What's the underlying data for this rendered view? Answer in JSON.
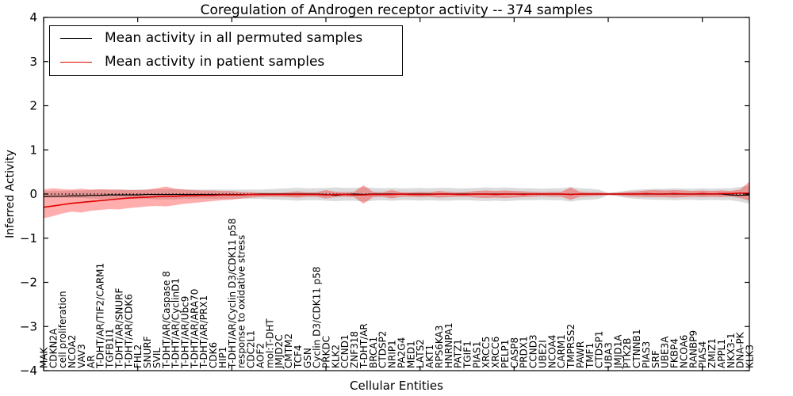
{
  "chart_data": {
    "type": "line",
    "title": "Coregulation of Androgen receptor activity -- 374 samples",
    "xlabel": "Cellular Entities",
    "ylabel": "Inferred Activity",
    "ylim": [
      -4,
      4
    ],
    "yticks": [
      -4,
      -3,
      -2,
      -1,
      0,
      1,
      2,
      3,
      4
    ],
    "xtick_major_interval": 10,
    "grid": false,
    "legend_position": "upper left",
    "categories": [
      "MAK",
      "CDKN2A",
      "cell proliferation",
      "NCOA2",
      "VAV3",
      "AR",
      "T-DHT/AR/TIF2/CARM1",
      "TGFB1I1",
      "T-DHT/AR/SNURF",
      "T-DHT/AR/CDK6",
      "FHL2",
      "SNURF",
      "SVIL",
      "T-DHT/AR/Caspase 8",
      "T-DHT/AR/CyclinD1",
      "T-DHT/AR/Ubc9",
      "T-DHT/AR/ARA70",
      "T-DHT/AR/PRX1",
      "CDK6",
      "HIP1",
      "T-DHT/AR/Cyclin D3/CDK11 p58",
      "response to oxidative stress",
      "CDC2L1",
      "AOF2",
      "mol:T-DHT",
      "JMJD2C",
      "CMTM2",
      "TCF4",
      "GSN",
      "Cyclin D3/CDK11 p58",
      "PRKDC",
      "KLK2",
      "CCND1",
      "ZNF318",
      "T-DHT/AR",
      "BRCA1",
      "CTDSP2",
      "NRIP1",
      "PA2G4",
      "MED1",
      "LATS2",
      "AKT1",
      "RPS6KA3",
      "HNRNPA1",
      "PATZ1",
      "TGIF1",
      "PIAS1",
      "XRCC5",
      "XRCC6",
      "PELP1",
      "CASP8",
      "PRDX1",
      "CCND3",
      "UBE2I",
      "NCOA4",
      "CARM1",
      "TMPRSS2",
      "PAWR",
      "TMF1",
      "CTDSP1",
      "UBA3",
      "JMJD1A",
      "PTK2B",
      "CTNNB1",
      "PIAS3",
      "SRF",
      "UBE3A",
      "FKBP4",
      "NCOA6",
      "RANBP9",
      "PIAS4",
      "ZMIZ1",
      "APPL1",
      "NKX3-1",
      "DNA-PK",
      "KLK3"
    ],
    "series": [
      {
        "name": "Mean activity in all permuted samples",
        "color": "#000000",
        "values": [
          -0.06,
          -0.05,
          -0.05,
          -0.04,
          -0.04,
          -0.03,
          -0.03,
          -0.02,
          -0.02,
          -0.02,
          -0.02,
          -0.01,
          -0.01,
          -0.01,
          -0.01,
          -0.01,
          -0.01,
          -0.01,
          -0.01,
          -0.01,
          -0.01,
          -0.01,
          -0.01,
          0,
          0,
          0,
          0,
          0,
          0,
          0,
          -0.01,
          -0.03,
          -0.01,
          0,
          -0.01,
          0,
          0,
          0,
          0,
          0,
          0,
          0,
          0,
          0,
          0,
          0,
          0,
          0,
          0,
          0,
          0,
          0,
          0,
          0,
          0,
          0,
          -0.01,
          0,
          0,
          0,
          0,
          0,
          0,
          0,
          0,
          0,
          0,
          0,
          0,
          0,
          0,
          0,
          0,
          -0.02,
          -0.03,
          -0.02
        ]
      },
      {
        "name": "Mean activity in patient samples",
        "color": "#e00000",
        "values": [
          -0.3,
          -0.27,
          -0.24,
          -0.21,
          -0.19,
          -0.17,
          -0.15,
          -0.13,
          -0.11,
          -0.09,
          -0.08,
          -0.07,
          -0.06,
          -0.05,
          -0.05,
          -0.04,
          -0.04,
          -0.03,
          -0.03,
          -0.02,
          -0.02,
          -0.02,
          -0.01,
          -0.01,
          -0.01,
          -0.01,
          -0.01,
          -0.01,
          -0.01,
          -0.01,
          -0.02,
          -0.01,
          -0.01,
          -0.02,
          -0.02,
          -0.01,
          -0.01,
          -0.01,
          0,
          -0.01,
          -0.01,
          -0.01,
          0,
          0,
          -0.01,
          -0.01,
          0,
          0,
          -0.01,
          0,
          0,
          -0.01,
          0,
          0,
          0,
          0,
          -0.01,
          0,
          0,
          0,
          0,
          0,
          0,
          0,
          0.01,
          0,
          0,
          0.01,
          0,
          0,
          0.01,
          0,
          0.01,
          0.01,
          0.02,
          0.02
        ]
      }
    ],
    "bands": [
      {
        "name": "permuted-range",
        "color": "rgba(0,0,0,0.14)",
        "upper": [
          0.06,
          0.07,
          0.07,
          0.08,
          0.08,
          0.09,
          0.1,
          0.1,
          0.1,
          0.1,
          0.1,
          0.1,
          0.11,
          0.11,
          0.11,
          0.1,
          0.1,
          0.1,
          0.1,
          0.1,
          0.1,
          0.1,
          0.1,
          0.1,
          0.11,
          0.12,
          0.13,
          0.14,
          0.13,
          0.13,
          0.14,
          0.15,
          0.14,
          0.14,
          0.16,
          0.14,
          0.13,
          0.14,
          0.13,
          0.13,
          0.14,
          0.13,
          0.14,
          0.14,
          0.13,
          0.13,
          0.14,
          0.15,
          0.14,
          0.15,
          0.14,
          0.13,
          0.13,
          0.12,
          0.13,
          0.13,
          0.16,
          0.13,
          0.12,
          0.1,
          0.03,
          0.05,
          0.08,
          0.1,
          0.11,
          0.12,
          0.12,
          0.13,
          0.12,
          0.12,
          0.13,
          0.12,
          0.13,
          0.13,
          0.16,
          0.2
        ],
        "lower": [
          -0.07,
          -0.08,
          -0.08,
          -0.09,
          -0.09,
          -0.1,
          -0.11,
          -0.11,
          -0.11,
          -0.11,
          -0.11,
          -0.11,
          -0.12,
          -0.12,
          -0.12,
          -0.11,
          -0.11,
          -0.11,
          -0.11,
          -0.11,
          -0.11,
          -0.11,
          -0.11,
          -0.11,
          -0.12,
          -0.13,
          -0.14,
          -0.15,
          -0.14,
          -0.14,
          -0.15,
          -0.16,
          -0.15,
          -0.15,
          -0.17,
          -0.15,
          -0.14,
          -0.15,
          -0.14,
          -0.14,
          -0.15,
          -0.14,
          -0.15,
          -0.15,
          -0.14,
          -0.14,
          -0.15,
          -0.16,
          -0.15,
          -0.16,
          -0.15,
          -0.14,
          -0.14,
          -0.13,
          -0.14,
          -0.14,
          -0.17,
          -0.14,
          -0.13,
          -0.11,
          -0.03,
          -0.05,
          -0.09,
          -0.11,
          -0.12,
          -0.13,
          -0.13,
          -0.14,
          -0.13,
          -0.13,
          -0.14,
          -0.13,
          -0.14,
          -0.14,
          -0.17,
          -0.22
        ]
      },
      {
        "name": "patient-range",
        "color": "rgba(255,0,0,0.32)",
        "upper": [
          0.1,
          0.13,
          0.11,
          0.1,
          0.12,
          0.1,
          0.11,
          0.1,
          0.1,
          0.09,
          0.09,
          0.1,
          0.13,
          0.17,
          0.12,
          0.1,
          0.09,
          0.08,
          0.08,
          0.07,
          0.07,
          0.05,
          0.04,
          0.03,
          0.03,
          0.03,
          0.04,
          0.06,
          0.04,
          0.04,
          0.09,
          0.05,
          0.04,
          0.05,
          0.2,
          0.05,
          0.04,
          0.09,
          0.04,
          0.04,
          0.05,
          0.04,
          0.07,
          0.05,
          0.04,
          0.05,
          0.07,
          0.08,
          0.07,
          0.08,
          0.07,
          0.06,
          0.05,
          0.04,
          0.05,
          0.05,
          0.15,
          0.05,
          0.04,
          0.04,
          0.02,
          0.03,
          0.05,
          0.06,
          0.08,
          0.09,
          0.08,
          0.09,
          0.08,
          0.07,
          0.08,
          0.07,
          0.08,
          0.07,
          0.1,
          0.28
        ],
        "lower": [
          -0.55,
          -0.5,
          -0.44,
          -0.4,
          -0.42,
          -0.38,
          -0.36,
          -0.34,
          -0.35,
          -0.32,
          -0.3,
          -0.28,
          -0.27,
          -0.28,
          -0.25,
          -0.22,
          -0.2,
          -0.18,
          -0.16,
          -0.14,
          -0.13,
          -0.1,
          -0.08,
          -0.07,
          -0.06,
          -0.06,
          -0.07,
          -0.08,
          -0.06,
          -0.06,
          -0.1,
          -0.07,
          -0.06,
          -0.07,
          -0.22,
          -0.07,
          -0.06,
          -0.1,
          -0.06,
          -0.06,
          -0.07,
          -0.06,
          -0.08,
          -0.07,
          -0.06,
          -0.06,
          -0.08,
          -0.09,
          -0.08,
          -0.09,
          -0.08,
          -0.07,
          -0.06,
          -0.05,
          -0.06,
          -0.06,
          -0.13,
          -0.06,
          -0.05,
          -0.04,
          -0.02,
          -0.03,
          -0.05,
          -0.06,
          -0.07,
          -0.07,
          -0.07,
          -0.08,
          -0.07,
          -0.06,
          -0.07,
          -0.06,
          -0.07,
          -0.06,
          -0.09,
          -0.15
        ]
      }
    ],
    "zero_line": {
      "style": "dotted",
      "color": "#000000",
      "y": 0
    }
  }
}
